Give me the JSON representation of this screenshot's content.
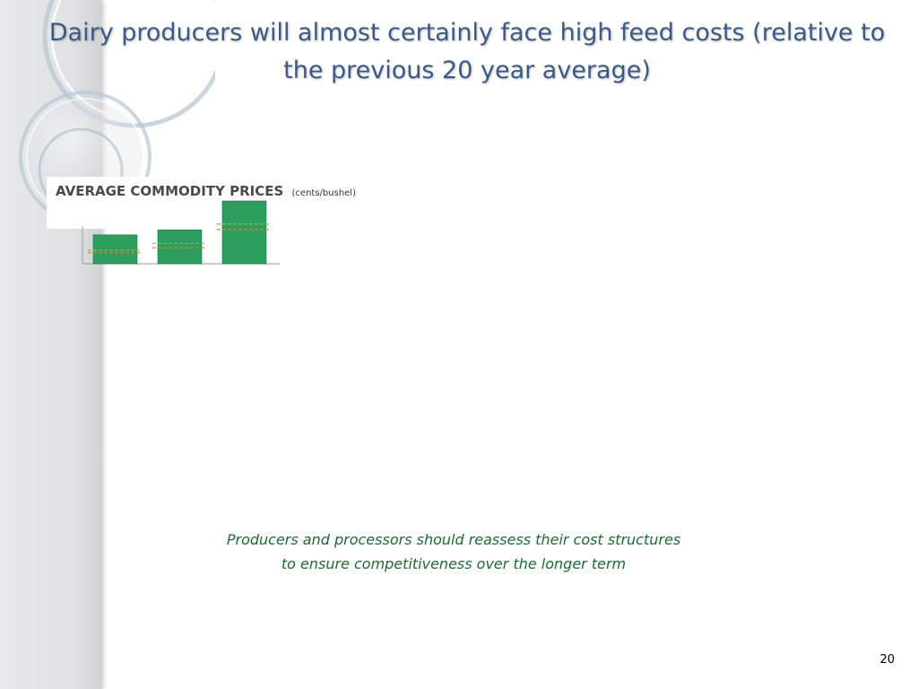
{
  "slide": {
    "title": "Dairy producers will almost certainly face high feed costs (relative to the previous 20 year average)",
    "note_line_1": "Producers and processors should reassess their cost structures",
    "note_line_2": "to ensure competitiveness over the longer term",
    "page_number": "20"
  },
  "chart_data": {
    "type": "bar",
    "title": "AVERAGE COMMODITY PRICES",
    "unit": "(cents/bushel)",
    "categories": [
      "",
      "",
      ""
    ],
    "values": [
      46,
      54,
      100
    ],
    "reference_lines": [
      {
        "color": "#e07b2e",
        "values": [
          26,
          34,
          63
        ]
      },
      {
        "color": "#7fbf5a",
        "values": [
          30,
          41,
          72
        ]
      }
    ],
    "bar_color": "#2e9e5e",
    "ylim": [
      0,
      100
    ],
    "grid": false
  }
}
